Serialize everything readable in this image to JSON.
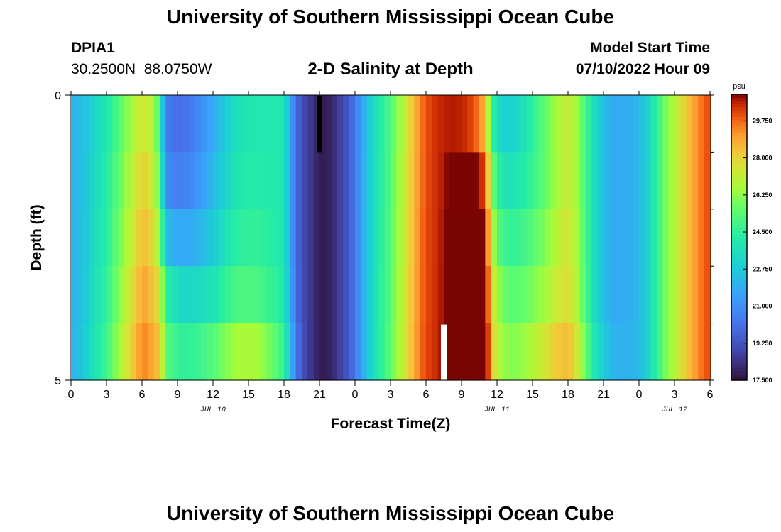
{
  "page": {
    "title": "University of Southern Mississippi Ocean Cube",
    "station_id": "DPIA1",
    "coords": "30.2500N  88.0750W",
    "chart_title": "2-D Salinity at Depth",
    "model_start_label": "Model Start Time",
    "model_start_value": "07/10/2022 Hour 09",
    "footer_title": "University of Southern Mississippi Ocean Cube"
  },
  "chart_data": {
    "type": "heatmap",
    "title": "2-D Salinity at Depth",
    "xlabel": "Forecast Time(Z)",
    "ylabel": "Depth (ft)",
    "unit": "psu",
    "x_tick_labels": [
      "0",
      "3",
      "6",
      "9",
      "12",
      "15",
      "18",
      "21",
      "0",
      "3",
      "6",
      "9",
      "12",
      "15",
      "18",
      "21",
      "0",
      "3",
      "6"
    ],
    "x_tick_hours": [
      0,
      3,
      6,
      9,
      12,
      15,
      18,
      21,
      24,
      27,
      30,
      33,
      36,
      39,
      42,
      45,
      48,
      51,
      54
    ],
    "x_range_hours": [
      0,
      54
    ],
    "date_labels": [
      {
        "text": "JUL 10",
        "hour": 12
      },
      {
        "text": "JUL 11",
        "hour": 36
      },
      {
        "text": "JUL 12",
        "hour": 51
      }
    ],
    "y_tick_labels": [
      "0",
      "5"
    ],
    "depth_range_ft": [
      0,
      5
    ],
    "depth_bins": 5,
    "colorbar": {
      "min": 17.5,
      "max": 31.0,
      "ticks": [
        "17.500",
        "19.250",
        "21.000",
        "22.750",
        "24.500",
        "26.250",
        "28.000",
        "29.750"
      ]
    },
    "profile_hours": [
      0,
      0.5,
      1,
      1.5,
      2,
      2.5,
      3,
      3.5,
      4,
      4.5,
      5,
      5.5,
      6,
      6.5,
      7,
      7.5,
      8,
      8.5,
      9,
      9.5,
      10,
      10.5,
      11,
      11.5,
      12,
      12.5,
      13,
      13.5,
      14,
      14.5,
      15,
      15.5,
      16,
      16.5,
      17,
      17.5,
      18,
      18.5,
      19,
      19.5,
      20,
      20.5,
      21,
      21.5,
      22,
      22.5,
      23,
      23.5,
      24,
      24.5,
      25,
      25.5,
      26,
      26.5,
      27,
      27.5,
      28,
      28.5,
      29,
      29.5,
      30,
      30.5,
      31,
      31.5,
      32,
      32.5,
      33,
      33.5,
      34,
      34.5,
      35,
      35.5,
      36,
      36.5,
      37,
      37.5,
      38,
      38.5,
      39,
      39.5,
      40,
      40.5,
      41,
      41.5,
      42,
      42.5,
      43,
      43.5,
      44,
      44.5,
      45,
      45.5,
      46,
      46.5,
      47,
      47.5,
      48,
      48.5,
      49,
      49.5,
      50,
      50.5,
      51,
      51.5,
      52,
      52.5,
      53,
      53.5,
      54
    ],
    "profile_base": [
      22.0,
      22.2,
      22.4,
      22.8,
      23.2,
      23.6,
      24.0,
      24.6,
      25.2,
      25.8,
      26.4,
      27.0,
      27.5,
      27.5,
      26.5,
      25.0,
      20.5,
      20.2,
      20.0,
      20.1,
      20.3,
      20.6,
      21.0,
      21.4,
      21.8,
      22.3,
      22.8,
      23.2,
      23.6,
      23.8,
      23.9,
      24.0,
      24.0,
      24.0,
      24.0,
      24.0,
      23.9,
      22.0,
      20.0,
      19.2,
      18.7,
      18.3,
      17.8,
      17.8,
      18.0,
      18.5,
      19.0,
      19.5,
      20.3,
      21.5,
      22.5,
      23.3,
      24.0,
      24.6,
      25.3,
      26.0,
      26.8,
      27.6,
      28.5,
      29.4,
      30.0,
      30.3,
      30.5,
      30.6,
      30.7,
      30.7,
      30.6,
      30.4,
      30.0,
      29.5,
      28.5,
      25.0,
      23.5,
      23.0,
      23.0,
      23.2,
      23.5,
      24.0,
      24.5,
      25.0,
      25.5,
      26.0,
      26.5,
      27.0,
      27.2,
      27.0,
      26.0,
      25.0,
      24.0,
      23.0,
      22.5,
      22.0,
      21.8,
      21.8,
      21.9,
      22.0,
      22.3,
      22.8,
      23.5,
      24.5,
      25.5,
      26.3,
      27.0,
      27.6,
      28.2,
      28.8,
      29.3,
      29.8,
      30.2
    ],
    "depth_adjust": {
      "bin_hours": [
        0,
        4,
        7,
        8,
        12,
        16,
        18,
        20,
        24,
        28,
        31,
        35,
        36,
        40,
        44,
        48,
        54
      ],
      "bins": [
        [
          0,
          0,
          0,
          0,
          0,
          0,
          0,
          0,
          0,
          0,
          0,
          0,
          0,
          0,
          0,
          0,
          0
        ],
        [
          0,
          0.3,
          0.5,
          0.5,
          0.4,
          0.2,
          0,
          0,
          0,
          0.1,
          0,
          1.5,
          1.0,
          0,
          0,
          0,
          0
        ],
        [
          0,
          0.5,
          1.0,
          2.0,
          1.0,
          0.5,
          0,
          0,
          0,
          0.2,
          0,
          2.5,
          2.0,
          0.5,
          0,
          0,
          0
        ],
        [
          0,
          0.8,
          1.5,
          4.0,
          2.0,
          1.0,
          0.2,
          0,
          0,
          0.3,
          0,
          3.0,
          3.0,
          1.0,
          0,
          0,
          0
        ],
        [
          0,
          1.2,
          2.0,
          5.0,
          3.5,
          2.5,
          0.8,
          0,
          0,
          0.4,
          0,
          3.5,
          3.5,
          2.0,
          0.5,
          0,
          0
        ]
      ]
    },
    "markers": [
      {
        "hour": 21,
        "depth_bin": 0,
        "color": "#000000"
      },
      {
        "hour": 31.5,
        "depth_bin": 4,
        "color": "#ffffff"
      }
    ]
  }
}
